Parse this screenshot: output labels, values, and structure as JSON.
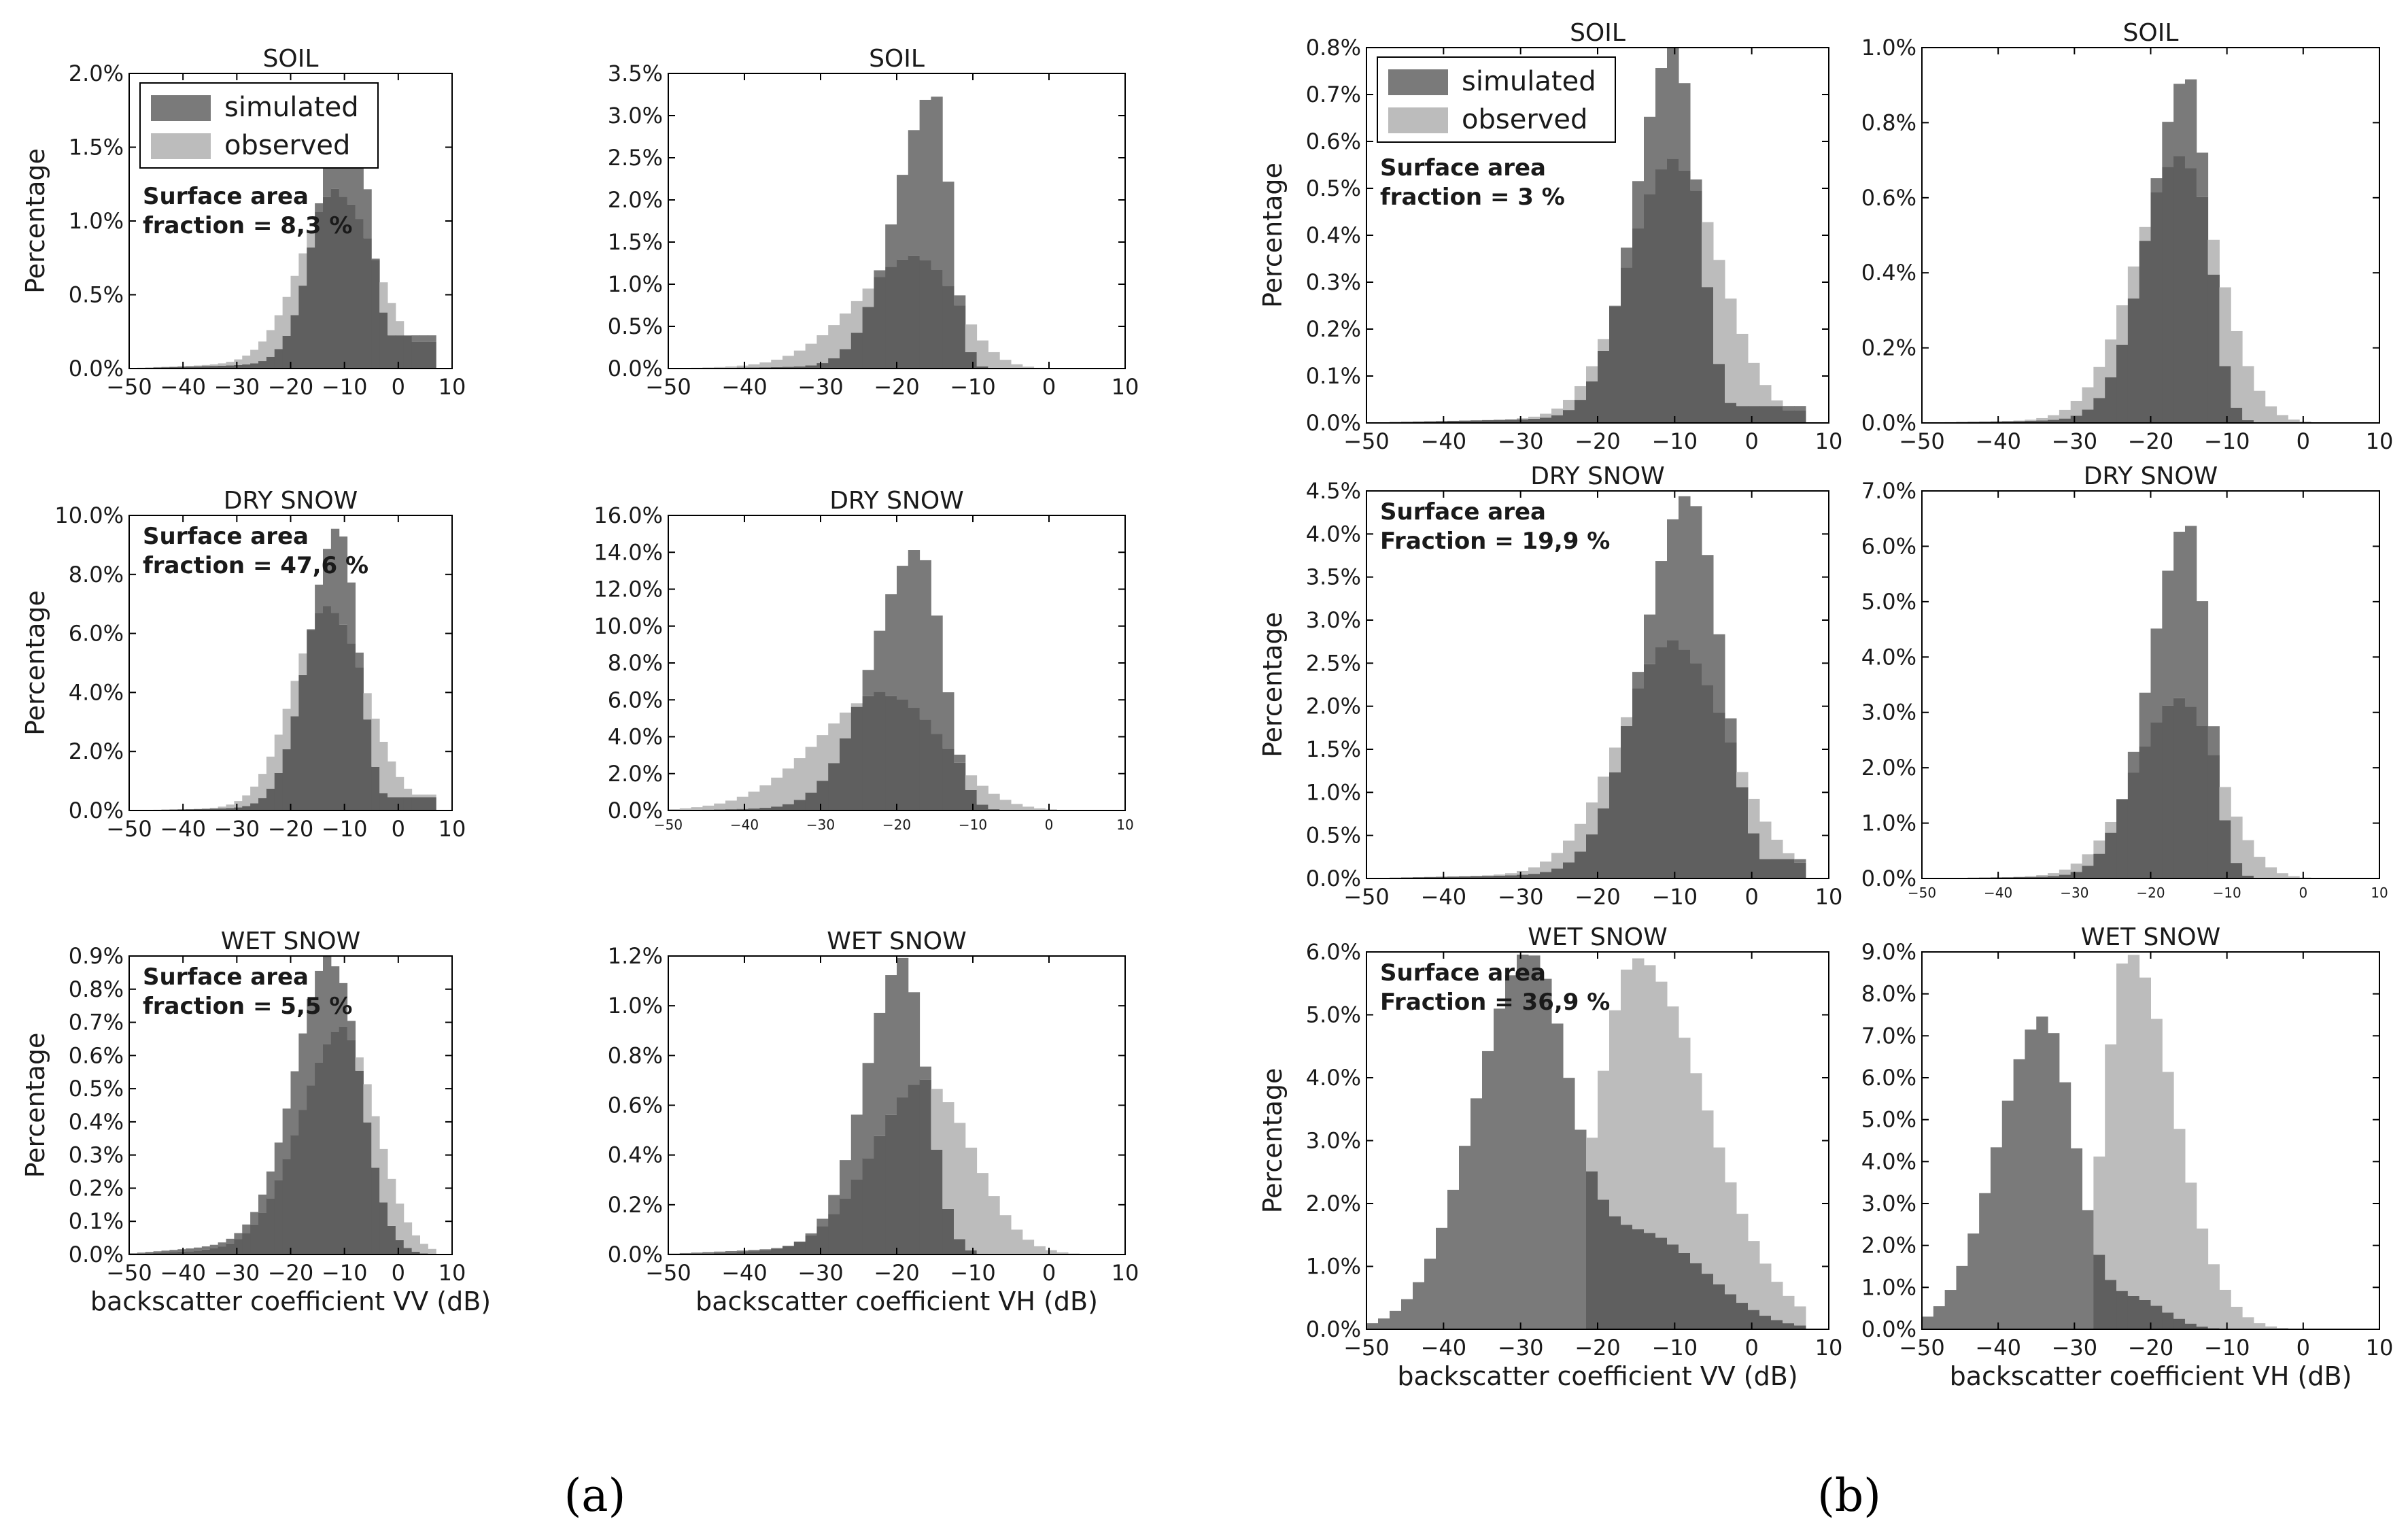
{
  "colors": {
    "simulated": "#7a7a7a",
    "observed": "#bcbcbc",
    "overlap": "#5f5f5f",
    "axis": "#000000",
    "background": "#ffffff"
  },
  "subfigure_labels": [
    "(a)",
    "(b)"
  ],
  "chart_data": [
    {
      "id": "a1",
      "type": "histogram",
      "title": "SOIL",
      "ylabel": "Percentage",
      "xlabel": "",
      "xlim": [
        -50,
        10
      ],
      "ylim": [
        0,
        2.0
      ],
      "yticks": [
        0,
        0.5,
        1.0,
        1.5,
        2.0
      ],
      "ytick_labels": [
        "0.0%",
        "0.5%",
        "1.0%",
        "1.5%",
        "2.0%"
      ],
      "xticks": [
        -50,
        -40,
        -30,
        -20,
        -10,
        0,
        10
      ],
      "xtick_labels": [
        "−50",
        "−40",
        "−30",
        "−20",
        "−10",
        "0",
        "10"
      ],
      "legend": true,
      "annotation": [
        "Surface area",
        "fraction = 8,3 %"
      ],
      "series": [
        {
          "name": "simulated",
          "peak_x": -9,
          "peak_y": 1.87,
          "left_w": 5.5,
          "right_w": 3.5,
          "base": 0.03,
          "tail": 0.25
        },
        {
          "name": "observed",
          "peak_x": -11,
          "peak_y": 1.17,
          "left_w": 7,
          "right_w": 7,
          "base": 0.04,
          "tail": 0.2
        }
      ]
    },
    {
      "id": "a2",
      "type": "histogram",
      "title": "SOIL",
      "ylabel": "",
      "xlabel": "",
      "xlim": [
        -50,
        10
      ],
      "ylim": [
        0,
        3.5
      ],
      "yticks": [
        0,
        0.5,
        1.0,
        1.5,
        2.0,
        2.5,
        3.0,
        3.5
      ],
      "ytick_labels": [
        "0.0%",
        "0.5%",
        "1.0%",
        "1.5%",
        "2.0%",
        "2.5%",
        "3.0%",
        "3.5%"
      ],
      "xticks": [
        -50,
        -40,
        -30,
        -20,
        -10,
        0,
        10
      ],
      "xtick_labels": [
        "−50",
        "−40",
        "−30",
        "−20",
        "−10",
        "0",
        "10"
      ],
      "legend": false,
      "annotation": [],
      "series": [
        {
          "name": "simulated",
          "peak_x": -15,
          "peak_y": 3.25,
          "left_w": 5,
          "right_w": 2,
          "base": 0.03,
          "tail": 0
        },
        {
          "name": "observed",
          "peak_x": -17,
          "peak_y": 1.3,
          "left_w": 8,
          "right_w": 5,
          "base": 0.04,
          "tail": 0
        }
      ]
    },
    {
      "id": "a3",
      "type": "histogram",
      "title": "DRY SNOW",
      "ylabel": "Percentage",
      "xlabel": "",
      "xlim": [
        -50,
        10
      ],
      "ylim": [
        0,
        10.0
      ],
      "yticks": [
        0,
        2,
        4,
        6,
        8,
        10
      ],
      "ytick_labels": [
        "0.0%",
        "2.0%",
        "4.0%",
        "6.0%",
        "8.0%",
        "10.0%"
      ],
      "xticks": [
        -50,
        -40,
        -30,
        -20,
        -10,
        0,
        10
      ],
      "xtick_labels": [
        "−50",
        "−40",
        "−30",
        "−20",
        "−10",
        "0",
        "10"
      ],
      "legend": false,
      "annotation": [
        "Surface area",
        "fraction = 47,6 %"
      ],
      "series": [
        {
          "name": "simulated",
          "peak_x": -11,
          "peak_y": 9.5,
          "left_w": 5.5,
          "right_w": 3.5,
          "base": 0.1,
          "tail": 0.5
        },
        {
          "name": "observed",
          "peak_x": -13,
          "peak_y": 6.8,
          "left_w": 6.5,
          "right_w": 7,
          "base": 0.1,
          "tail": 0.6
        }
      ]
    },
    {
      "id": "a4",
      "type": "histogram",
      "title": "DRY SNOW",
      "ylabel": "",
      "xlabel": "",
      "xlim": [
        -50,
        10
      ],
      "ylim": [
        0,
        16.0
      ],
      "yticks": [
        0,
        2,
        4,
        6,
        8,
        10,
        12,
        14,
        16
      ],
      "ytick_labels": [
        "0.0%",
        "2.0%",
        "4.0%",
        "6.0%",
        "8.0%",
        "10.0%",
        "12.0%",
        "14.0%",
        "16.0%"
      ],
      "xticks": [
        -50,
        -40,
        -30,
        -20,
        -10,
        0,
        10
      ],
      "xtick_labels": [
        "−50",
        "−40",
        "−30",
        "−20",
        "−10",
        "0",
        "10"
      ],
      "small_ticks": true,
      "legend": false,
      "annotation": [],
      "series": [
        {
          "name": "simulated",
          "peak_x": -17,
          "peak_y": 14.0,
          "left_w": 6,
          "right_w": 3,
          "base": 0.2,
          "tail": 0
        },
        {
          "name": "observed",
          "peak_x": -21,
          "peak_y": 6.2,
          "left_w": 9,
          "right_w": 7,
          "base": 0.3,
          "tail": 0
        }
      ]
    },
    {
      "id": "a5",
      "type": "histogram",
      "title": "WET SNOW",
      "ylabel": "Percentage",
      "xlabel": "backscatter coefficient VV (dB)",
      "xlim": [
        -50,
        10
      ],
      "ylim": [
        0,
        0.9
      ],
      "yticks": [
        0,
        0.1,
        0.2,
        0.3,
        0.4,
        0.5,
        0.6,
        0.7,
        0.8,
        0.9
      ],
      "ytick_labels": [
        "0.0%",
        "0.1%",
        "0.2%",
        "0.3%",
        "0.4%",
        "0.5%",
        "0.6%",
        "0.7%",
        "0.8%",
        "0.9%"
      ],
      "xticks": [
        -50,
        -40,
        -30,
        -20,
        -10,
        0,
        10
      ],
      "xtick_labels": [
        "−50",
        "−40",
        "−30",
        "−20",
        "−10",
        "0",
        "10"
      ],
      "legend": false,
      "annotation": [
        "Surface area",
        "fraction = 5,5 %"
      ],
      "series": [
        {
          "name": "simulated",
          "peak_x": -12,
          "peak_y": 0.87,
          "left_w": 7,
          "right_w": 5,
          "base": 0.04,
          "tail": 0
        },
        {
          "name": "observed",
          "peak_x": -10,
          "peak_y": 0.66,
          "left_w": 8,
          "right_w": 6,
          "base": 0.02,
          "tail": 0
        }
      ]
    },
    {
      "id": "a6",
      "type": "histogram",
      "title": "WET SNOW",
      "ylabel": "",
      "xlabel": "backscatter coefficient VH (dB)",
      "xlim": [
        -50,
        10
      ],
      "ylim": [
        0,
        1.2
      ],
      "yticks": [
        0,
        0.2,
        0.4,
        0.6,
        0.8,
        1.0,
        1.2
      ],
      "ytick_labels": [
        "0.0%",
        "0.2%",
        "0.4%",
        "0.6%",
        "0.8%",
        "1.0%",
        "1.2%"
      ],
      "xticks": [
        -50,
        -40,
        -30,
        -20,
        -10,
        0,
        10
      ],
      "xtick_labels": [
        "−50",
        "−40",
        "−30",
        "−20",
        "−10",
        "0",
        "10"
      ],
      "legend": false,
      "annotation": [],
      "series": [
        {
          "name": "simulated",
          "peak_x": -19,
          "peak_y": 1.15,
          "left_w": 5,
          "right_w": 3,
          "base": 0.04,
          "tail": 0
        },
        {
          "name": "observed",
          "peak_x": -16,
          "peak_y": 0.68,
          "left_w": 7,
          "right_w": 6,
          "base": 0.02,
          "tail": 0
        }
      ]
    },
    {
      "id": "b1",
      "type": "histogram",
      "title": "SOIL",
      "ylabel": "Percentage",
      "xlabel": "",
      "xlim": [
        -50,
        10
      ],
      "ylim": [
        0,
        0.8
      ],
      "yticks": [
        0,
        0.1,
        0.2,
        0.3,
        0.4,
        0.5,
        0.6,
        0.7,
        0.8
      ],
      "ytick_labels": [
        "0.0%",
        "0.1%",
        "0.2%",
        "0.3%",
        "0.4%",
        "0.5%",
        "0.6%",
        "0.7%",
        "0.8%"
      ],
      "xticks": [
        -50,
        -40,
        -30,
        -20,
        -10,
        0,
        10
      ],
      "xtick_labels": [
        "−50",
        "−40",
        "−30",
        "−20",
        "−10",
        "0",
        "10"
      ],
      "legend": true,
      "annotation": [
        "Surface area",
        "fraction = 3 %"
      ],
      "series": [
        {
          "name": "simulated",
          "peak_x": -10,
          "peak_y": 0.79,
          "left_w": 5,
          "right_w": 3,
          "base": 0.01,
          "tail": 0.04
        },
        {
          "name": "observed",
          "peak_x": -10,
          "peak_y": 0.55,
          "left_w": 6,
          "right_w": 6,
          "base": 0.01,
          "tail": 0.03
        }
      ]
    },
    {
      "id": "b2",
      "type": "histogram",
      "title": "SOIL",
      "ylabel": "",
      "xlabel": "",
      "xlim": [
        -50,
        10
      ],
      "ylim": [
        0,
        1.0
      ],
      "yticks": [
        0,
        0.2,
        0.4,
        0.6,
        0.8,
        1.0
      ],
      "ytick_labels": [
        "0.0%",
        "0.2%",
        "0.4%",
        "0.6%",
        "0.8%",
        "1.0%"
      ],
      "xticks": [
        -50,
        -40,
        -30,
        -20,
        -10,
        0,
        10
      ],
      "xtick_labels": [
        "−50",
        "−40",
        "−30",
        "−20",
        "−10",
        "0",
        "10"
      ],
      "legend": false,
      "annotation": [],
      "series": [
        {
          "name": "simulated",
          "peak_x": -15,
          "peak_y": 0.92,
          "left_w": 5,
          "right_w": 2.5,
          "base": 0.01,
          "tail": 0
        },
        {
          "name": "observed",
          "peak_x": -16,
          "peak_y": 0.7,
          "left_w": 6,
          "right_w": 5,
          "base": 0.01,
          "tail": 0
        }
      ]
    },
    {
      "id": "b3",
      "type": "histogram",
      "title": "DRY SNOW",
      "ylabel": "Percentage",
      "xlabel": "",
      "xlim": [
        -50,
        10
      ],
      "ylim": [
        0,
        4.5
      ],
      "yticks": [
        0,
        0.5,
        1.0,
        1.5,
        2.0,
        2.5,
        3.0,
        3.5,
        4.0,
        4.5
      ],
      "ytick_labels": [
        "0.0%",
        "0.5%",
        "1.0%",
        "1.5%",
        "2.0%",
        "2.5%",
        "3.0%",
        "3.5%",
        "4.0%",
        "4.5%"
      ],
      "xticks": [
        -50,
        -40,
        -30,
        -20,
        -10,
        0,
        10
      ],
      "xtick_labels": [
        "−50",
        "−40",
        "−30",
        "−20",
        "−10",
        "0",
        "10"
      ],
      "legend": false,
      "annotation": [
        "Surface area",
        "Fraction = 19,9 %"
      ],
      "series": [
        {
          "name": "simulated",
          "peak_x": -8,
          "peak_y": 4.4,
          "left_w": 6,
          "right_w": 4,
          "base": 0.05,
          "tail": 0.25
        },
        {
          "name": "observed",
          "peak_x": -10,
          "peak_y": 2.7,
          "left_w": 7,
          "right_w": 7,
          "base": 0.05,
          "tail": 0.2
        }
      ]
    },
    {
      "id": "b4",
      "type": "histogram",
      "title": "DRY SNOW",
      "ylabel": "",
      "xlabel": "",
      "xlim": [
        -50,
        10
      ],
      "ylim": [
        0,
        7.0
      ],
      "yticks": [
        0,
        1,
        2,
        3,
        4,
        5,
        6,
        7
      ],
      "ytick_labels": [
        "0.0%",
        "1.0%",
        "2.0%",
        "3.0%",
        "4.0%",
        "5.0%",
        "6.0%",
        "7.0%"
      ],
      "xticks": [
        -50,
        -40,
        -30,
        -20,
        -10,
        0,
        10
      ],
      "xtick_labels": [
        "−50",
        "−40",
        "−30",
        "−20",
        "−10",
        "0",
        "10"
      ],
      "small_ticks": true,
      "legend": false,
      "annotation": [],
      "series": [
        {
          "name": "simulated",
          "peak_x": -15,
          "peak_y": 6.4,
          "left_w": 5,
          "right_w": 2.5,
          "base": 0.05,
          "tail": 0
        },
        {
          "name": "observed",
          "peak_x": -16,
          "peak_y": 3.2,
          "left_w": 6,
          "right_w": 5,
          "base": 0.05,
          "tail": 0
        }
      ]
    },
    {
      "id": "b5",
      "type": "histogram",
      "title": "WET SNOW",
      "ylabel": "Percentage",
      "xlabel": "backscatter coefficient VV (dB)",
      "xlim": [
        -50,
        10
      ],
      "ylim": [
        0,
        6.0
      ],
      "yticks": [
        0,
        1,
        2,
        3,
        4,
        5,
        6
      ],
      "ytick_labels": [
        "0.0%",
        "1.0%",
        "2.0%",
        "3.0%",
        "4.0%",
        "5.0%",
        "6.0%"
      ],
      "xticks": [
        -50,
        -40,
        -30,
        -20,
        -10,
        0,
        10
      ],
      "xtick_labels": [
        "−50",
        "−40",
        "−30",
        "−20",
        "−10",
        "0",
        "10"
      ],
      "legend": false,
      "annotation": [
        "Surface area",
        "Fraction = 36,9 %"
      ],
      "series": [
        {
          "name": "simulated",
          "peak_x": -29,
          "peak_y": 5.7,
          "left_w": 7,
          "right_w": 5,
          "base": 0.1,
          "tail": 0,
          "shoulder": {
            "x": -14,
            "y": 1.5,
            "w": 8
          }
        },
        {
          "name": "observed",
          "peak_x": -15,
          "peak_y": 5.9,
          "left_w": 5,
          "right_w": 9,
          "base": 0,
          "tail": 0,
          "cut_below": -22
        }
      ]
    },
    {
      "id": "b6",
      "type": "histogram",
      "title": "WET SNOW",
      "ylabel": "",
      "xlabel": "backscatter coefficient VH (dB)",
      "xlim": [
        -50,
        10
      ],
      "ylim": [
        0,
        9.0
      ],
      "yticks": [
        0,
        1,
        2,
        3,
        4,
        5,
        6,
        7,
        8,
        9
      ],
      "ytick_labels": [
        "0.0%",
        "1.0%",
        "2.0%",
        "3.0%",
        "4.0%",
        "5.0%",
        "6.0%",
        "7.0%",
        "8.0%",
        "9.0%"
      ],
      "xticks": [
        -50,
        -40,
        -30,
        -20,
        -10,
        0,
        10
      ],
      "xtick_labels": [
        "−50",
        "−40",
        "−30",
        "−20",
        "−10",
        "0",
        "10"
      ],
      "legend": false,
      "annotation": [],
      "series": [
        {
          "name": "simulated",
          "peak_x": -34,
          "peak_y": 7.4,
          "left_w": 6,
          "right_w": 4,
          "base": 0.1,
          "tail": 0,
          "shoulder": {
            "x": -22,
            "y": 0.7,
            "w": 4
          }
        },
        {
          "name": "observed",
          "peak_x": -23,
          "peak_y": 9.0,
          "left_w": 3,
          "right_w": 6,
          "base": 0,
          "tail": 0,
          "cut_below": -28
        }
      ]
    }
  ]
}
